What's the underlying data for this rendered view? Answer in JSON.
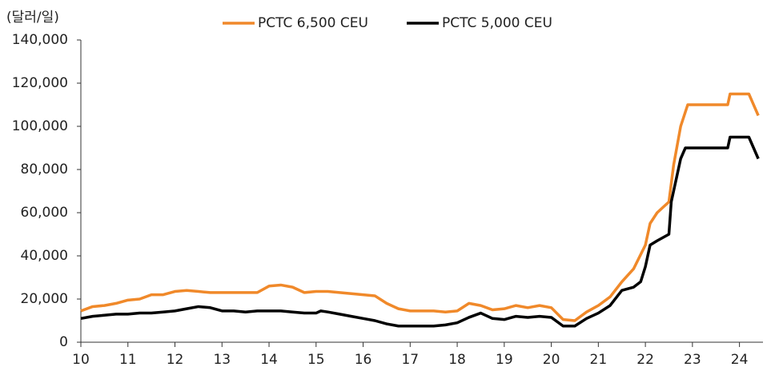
{
  "chart_data": {
    "type": "line",
    "y_label": "(달러/일)",
    "xlim": [
      10,
      24.5
    ],
    "xticks": [
      10,
      11,
      12,
      13,
      14,
      15,
      16,
      17,
      18,
      19,
      20,
      21,
      22,
      23,
      24
    ],
    "ylim": [
      0,
      140000
    ],
    "yticks": [
      0,
      {
        "value": 20000,
        "label": "20,000"
      },
      {
        "value": 40000,
        "label": "40,000"
      },
      {
        "value": 60000,
        "label": "60,000"
      },
      {
        "value": 80000,
        "label": "80,000"
      },
      {
        "value": 100000,
        "label": "100,000"
      },
      {
        "value": 120000,
        "label": "120,000"
      },
      {
        "value": 140000,
        "label": "140,000"
      }
    ],
    "grid": false,
    "legend": "top",
    "series": [
      {
        "name": "PCTC 6,500 CEU",
        "color": "#f0892a",
        "x": [
          10,
          10.25,
          10.5,
          10.75,
          11,
          11.25,
          11.5,
          11.75,
          12,
          12.25,
          12.5,
          12.75,
          13,
          13.25,
          13.5,
          13.75,
          14,
          14.25,
          14.5,
          14.75,
          15,
          15.25,
          15.5,
          15.75,
          16,
          16.25,
          16.5,
          16.75,
          17,
          17.25,
          17.5,
          17.75,
          18,
          18.25,
          18.5,
          18.75,
          19,
          19.25,
          19.5,
          19.75,
          20,
          20.25,
          20.5,
          20.75,
          21,
          21.25,
          21.5,
          21.75,
          22,
          22.1,
          22.25,
          22.5,
          22.6,
          22.75,
          22.9,
          23,
          23.5,
          23.75,
          23.8,
          24,
          24.2,
          24.4
        ],
        "values": [
          14500,
          16500,
          17000,
          18000,
          19500,
          20000,
          22000,
          22000,
          23500,
          24000,
          23500,
          23000,
          23000,
          23000,
          23000,
          23000,
          26000,
          26500,
          25500,
          23000,
          23500,
          23500,
          23000,
          22500,
          22000,
          21500,
          18000,
          15500,
          14500,
          14500,
          14500,
          14000,
          14500,
          18000,
          17000,
          15000,
          15500,
          17000,
          16000,
          17000,
          16000,
          10500,
          10000,
          14000,
          17000,
          21000,
          28000,
          34000,
          45000,
          55000,
          60000,
          65000,
          82000,
          100000,
          110000,
          110000,
          110000,
          110000,
          115000,
          115000,
          115000,
          105000
        ]
      },
      {
        "name": "PCTC 5,000 CEU",
        "color": "#000000",
        "x": [
          10,
          10.25,
          10.5,
          10.75,
          11,
          11.25,
          11.5,
          11.75,
          12,
          12.25,
          12.5,
          12.75,
          13,
          13.25,
          13.5,
          13.75,
          14,
          14.25,
          14.5,
          14.75,
          15,
          15.1,
          15.25,
          15.5,
          15.75,
          16,
          16.25,
          16.5,
          16.75,
          17,
          17.25,
          17.5,
          17.75,
          18,
          18.25,
          18.5,
          18.75,
          19,
          19.25,
          19.5,
          19.75,
          20,
          20.25,
          20.5,
          20.75,
          21,
          21.25,
          21.5,
          21.75,
          21.9,
          22,
          22.1,
          22.25,
          22.5,
          22.55,
          22.75,
          22.85,
          23,
          23.5,
          23.75,
          23.8,
          24,
          24.2,
          24.4
        ],
        "values": [
          11000,
          12000,
          12500,
          13000,
          13000,
          13500,
          13500,
          14000,
          14500,
          15500,
          16500,
          16000,
          14500,
          14500,
          14000,
          14500,
          14500,
          14500,
          14000,
          13500,
          13500,
          14500,
          14000,
          13000,
          12000,
          11000,
          10000,
          8500,
          7500,
          7500,
          7500,
          7500,
          8000,
          9000,
          11500,
          13500,
          11000,
          10500,
          12000,
          11500,
          12000,
          11500,
          7500,
          7500,
          11000,
          13500,
          17000,
          24000,
          25500,
          28000,
          35000,
          45000,
          47000,
          50000,
          65000,
          85000,
          90000,
          90000,
          90000,
          90000,
          95000,
          95000,
          95000,
          85000
        ]
      }
    ]
  }
}
